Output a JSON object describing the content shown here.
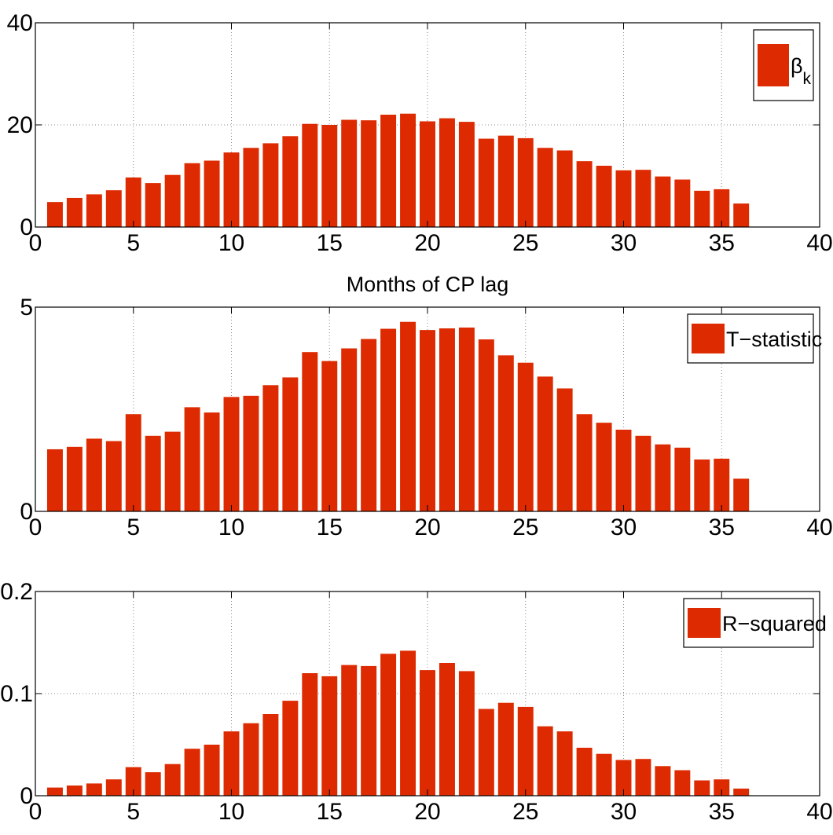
{
  "figure": {
    "background": "#ffffff",
    "bar_color": "#dd2a00",
    "grid": "dotted"
  },
  "chart_data": [
    {
      "type": "bar",
      "legend": "β_k",
      "legend_placement": "top-right",
      "xlabel": "Months of CP lag",
      "ylabel": "",
      "xlim": [
        0,
        40
      ],
      "ylim": [
        0,
        40
      ],
      "xticks": [
        0,
        5,
        10,
        15,
        20,
        25,
        30,
        35,
        40
      ],
      "yticks": [
        0,
        20,
        40
      ],
      "x": [
        1,
        2,
        3,
        4,
        5,
        6,
        7,
        8,
        9,
        10,
        11,
        12,
        13,
        14,
        15,
        16,
        17,
        18,
        19,
        20,
        21,
        22,
        23,
        24,
        25,
        26,
        27,
        28,
        29,
        30,
        31,
        32,
        33,
        34,
        35,
        36
      ],
      "values": [
        4.9,
        5.7,
        6.4,
        7.2,
        9.7,
        8.6,
        10.2,
        12.5,
        13.0,
        14.6,
        15.5,
        16.4,
        17.8,
        20.2,
        20.0,
        21.0,
        20.9,
        22.0,
        22.2,
        20.7,
        21.3,
        20.6,
        17.3,
        17.9,
        17.4,
        15.5,
        15.0,
        12.9,
        12.0,
        11.1,
        11.2,
        9.9,
        9.3,
        7.1,
        7.4,
        4.6
      ]
    },
    {
      "type": "bar",
      "legend": "T−statistic",
      "legend_placement": "top-right",
      "xlabel": "",
      "ylabel": "",
      "xlim": [
        0,
        40
      ],
      "ylim": [
        0,
        5
      ],
      "xticks": [
        0,
        5,
        10,
        15,
        20,
        25,
        30,
        35,
        40
      ],
      "yticks": [
        0,
        5
      ],
      "x": [
        1,
        2,
        3,
        4,
        5,
        6,
        7,
        8,
        9,
        10,
        11,
        12,
        13,
        14,
        15,
        16,
        17,
        18,
        19,
        20,
        21,
        22,
        23,
        24,
        25,
        26,
        27,
        28,
        29,
        30,
        31,
        32,
        33,
        34,
        35,
        36
      ],
      "values": [
        1.52,
        1.58,
        1.78,
        1.72,
        2.38,
        1.85,
        1.95,
        2.55,
        2.42,
        2.8,
        2.83,
        3.09,
        3.28,
        3.9,
        3.68,
        3.99,
        4.22,
        4.47,
        4.64,
        4.44,
        4.48,
        4.5,
        4.21,
        3.82,
        3.64,
        3.3,
        3.01,
        2.38,
        2.17,
        2.0,
        1.85,
        1.64,
        1.56,
        1.27,
        1.29,
        0.8
      ]
    },
    {
      "type": "bar",
      "legend": "R−squared",
      "legend_placement": "top-right",
      "xlabel": "",
      "ylabel": "",
      "xlim": [
        0,
        40
      ],
      "ylim": [
        0,
        0.2
      ],
      "xticks": [
        0,
        5,
        10,
        15,
        20,
        25,
        30,
        35,
        40
      ],
      "yticks": [
        0,
        0.1,
        0.2
      ],
      "x": [
        1,
        2,
        3,
        4,
        5,
        6,
        7,
        8,
        9,
        10,
        11,
        12,
        13,
        14,
        15,
        16,
        17,
        18,
        19,
        20,
        21,
        22,
        23,
        24,
        25,
        26,
        27,
        28,
        29,
        30,
        31,
        32,
        33,
        34,
        35,
        36
      ],
      "values": [
        0.008,
        0.01,
        0.012,
        0.016,
        0.028,
        0.023,
        0.031,
        0.046,
        0.05,
        0.063,
        0.071,
        0.08,
        0.093,
        0.12,
        0.117,
        0.128,
        0.127,
        0.139,
        0.142,
        0.123,
        0.13,
        0.122,
        0.085,
        0.091,
        0.087,
        0.068,
        0.063,
        0.047,
        0.041,
        0.035,
        0.036,
        0.029,
        0.025,
        0.015,
        0.016,
        0.007
      ]
    }
  ]
}
